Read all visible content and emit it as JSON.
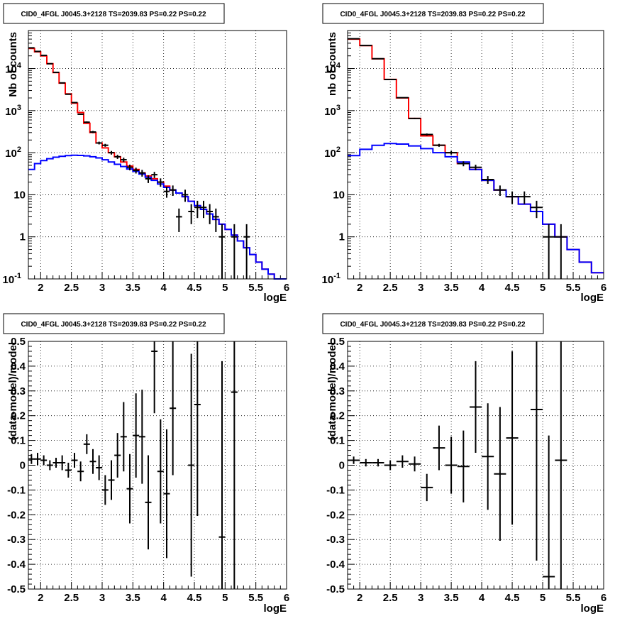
{
  "chart_data": [
    {
      "type": "line",
      "title": "CID0_4FGL J0045.3+2128 TS=2039.83 PS=0.22 PS=0.22",
      "xlabel": "logE",
      "ylabel": "Nb of counts",
      "log_y": true,
      "xlim": [
        1.8,
        6.0
      ],
      "ylim": [
        0.1,
        80000
      ],
      "grid": true,
      "x_ticks": [
        "2",
        "2.5",
        "3",
        "3.5",
        "4",
        "4.5",
        "5",
        "5.5",
        "6"
      ],
      "y_ticks": [
        "10^-1",
        "1",
        "10",
        "10^2",
        "10^3",
        "10^4"
      ],
      "bin_edges": [
        1.8,
        1.9,
        2.0,
        2.1,
        2.2,
        2.3,
        2.4,
        2.5,
        2.6,
        2.7,
        2.8,
        2.9,
        3.0,
        3.1,
        3.2,
        3.3,
        3.4,
        3.5,
        3.6,
        3.7,
        3.8,
        3.9,
        4.0,
        4.1,
        4.2,
        4.3,
        4.4,
        4.5,
        4.6,
        4.7,
        4.8,
        4.9,
        5.0,
        5.1,
        5.2,
        5.3,
        5.4,
        5.5,
        5.6,
        5.7,
        5.8,
        5.9,
        6.0
      ],
      "series": [
        {
          "color": "#ff0000",
          "kind": "histogram",
          "values": [
            30000,
            25000,
            20000,
            13000,
            8000,
            4500,
            2500,
            1500,
            900,
            500,
            300,
            170,
            130,
            100,
            80,
            60,
            48,
            40,
            33,
            28,
            24,
            20,
            16,
            13,
            11,
            9,
            7,
            5.5,
            4.5,
            3.5,
            2.6,
            2,
            1.5,
            1.1,
            0.8,
            0.55,
            0.38,
            0.25,
            0.17,
            0.13,
            0.1,
            0.1
          ]
        },
        {
          "color": "#0000ff",
          "kind": "histogram",
          "values": [
            40,
            55,
            65,
            72,
            78,
            82,
            85,
            87,
            86,
            84,
            80,
            75,
            68,
            60,
            53,
            47,
            41,
            36,
            31,
            26,
            22,
            18,
            15,
            13,
            11,
            9,
            7,
            5.5,
            4.5,
            3.5,
            2.6,
            2,
            1.5,
            1.1,
            0.8,
            0.55,
            0.38,
            0.25,
            0.17,
            0.13,
            0.1,
            0.1
          ]
        },
        {
          "color": "#000000",
          "kind": "points",
          "x": [
            1.85,
            1.95,
            2.05,
            2.15,
            2.25,
            2.35,
            2.45,
            2.55,
            2.65,
            2.75,
            2.85,
            2.95,
            3.05,
            3.15,
            3.25,
            3.35,
            3.45,
            3.55,
            3.65,
            3.75,
            3.85,
            3.95,
            4.05,
            4.15,
            4.25,
            4.35,
            4.45,
            4.55,
            4.65,
            4.75,
            4.85,
            4.95,
            5.15,
            5.35
          ],
          "y": [
            31000,
            25500,
            20500,
            13000,
            8100,
            4550,
            2450,
            1550,
            820,
            530,
            310,
            170,
            150,
            100,
            80,
            68,
            45,
            38,
            33,
            24,
            30,
            20,
            12,
            13,
            3,
            10,
            4,
            5,
            5,
            4,
            3,
            1,
            1,
            1
          ],
          "yerr": [
            176,
            160,
            143,
            114,
            90,
            67,
            50,
            39,
            29,
            23,
            18,
            13,
            12,
            10,
            9,
            8,
            7,
            6,
            6,
            5,
            5,
            4.5,
            3.5,
            3.6,
            1.7,
            3.2,
            2,
            2.2,
            2.2,
            2,
            1.7,
            1,
            1,
            1
          ]
        }
      ]
    },
    {
      "type": "line",
      "title": "CID0_4FGL J0045.3+2128 TS=2039.83 PS=0.22 PS=0.22",
      "xlabel": "logE",
      "ylabel": "nb of counts",
      "log_y": true,
      "xlim": [
        1.8,
        6.0
      ],
      "ylim": [
        0.1,
        80000
      ],
      "grid": true,
      "x_ticks": [
        "2",
        "2.5",
        "3",
        "3.5",
        "4",
        "4.5",
        "5",
        "5.5",
        "6"
      ],
      "y_ticks": [
        "10^-1",
        "1",
        "10",
        "10^2",
        "10^3",
        "10^4"
      ],
      "bin_edges": [
        1.8,
        2.0,
        2.2,
        2.4,
        2.6,
        2.8,
        3.0,
        3.2,
        3.4,
        3.6,
        3.8,
        4.0,
        4.2,
        4.4,
        4.6,
        4.8,
        5.0,
        5.2,
        5.4,
        5.6,
        5.8,
        6.0
      ],
      "series": [
        {
          "color": "#ff0000",
          "kind": "histogram",
          "values": [
            50000,
            35000,
            17000,
            5500,
            2000,
            650,
            250,
            150,
            100,
            55,
            40,
            22,
            13,
            9,
            6,
            4,
            2,
            1,
            0.5,
            0.25,
            0.14
          ]
        },
        {
          "color": "#0000ff",
          "kind": "histogram",
          "values": [
            85,
            120,
            150,
            165,
            160,
            145,
            125,
            100,
            80,
            60,
            40,
            22,
            13,
            9,
            6,
            4,
            2,
            1,
            0.5,
            0.25,
            0.14
          ]
        },
        {
          "color": "#000000",
          "kind": "points",
          "x": [
            1.9,
            2.1,
            2.3,
            2.5,
            2.7,
            2.9,
            3.1,
            3.3,
            3.5,
            3.7,
            3.9,
            4.1,
            4.3,
            4.5,
            4.7,
            4.9,
            5.1,
            5.3
          ],
          "y": [
            51000,
            35300,
            17100,
            5480,
            2030,
            650,
            270,
            150,
            100,
            55,
            45,
            23,
            13,
            9,
            9,
            5,
            1,
            1
          ],
          "yerr": [
            226,
            188,
            131,
            74,
            45,
            25,
            16,
            12,
            10,
            7.4,
            6.7,
            4.8,
            3.6,
            3,
            3,
            2.2,
            1,
            1
          ]
        }
      ]
    },
    {
      "type": "scatter",
      "title": "CID0_4FGL J0045.3+2128 TS=2039.83 PS=0.22 PS=0.22",
      "xlabel": "logE",
      "ylabel": "(data-model)/model",
      "xlim": [
        1.8,
        6.0
      ],
      "ylim": [
        -0.5,
        0.5
      ],
      "grid": true,
      "x_ticks": [
        "2",
        "2.5",
        "3",
        "3.5",
        "4",
        "4.5",
        "5",
        "5.5",
        "6"
      ],
      "y_ticks": [
        "-0.5",
        "-0.4",
        "-0.3",
        "-0.2",
        "-0.1",
        "0",
        "0.1",
        "0.2",
        "0.3",
        "0.4",
        "0.5"
      ],
      "series": [
        {
          "color": "#000000",
          "kind": "points",
          "x": [
            1.85,
            1.95,
            2.05,
            2.15,
            2.25,
            2.35,
            2.45,
            2.55,
            2.65,
            2.75,
            2.85,
            2.95,
            3.05,
            3.15,
            3.25,
            3.35,
            3.45,
            3.55,
            3.65,
            3.75,
            3.85,
            3.95,
            4.05,
            4.15,
            4.45,
            4.55,
            4.95,
            5.15
          ],
          "y": [
            0.025,
            0.025,
            0.02,
            0.0,
            0.01,
            0.01,
            -0.02,
            0.02,
            -0.025,
            0.085,
            0.015,
            -0.01,
            -0.1,
            -0.06,
            0.04,
            0.115,
            -0.095,
            0.12,
            0.115,
            -0.15,
            0.46,
            -0.025,
            -0.115,
            0.23,
            0.0,
            0.245,
            -0.29,
            0.295
          ],
          "yerr": [
            0.02,
            0.025,
            0.02,
            0.02,
            0.02,
            0.03,
            0.03,
            0.03,
            0.04,
            0.04,
            0.05,
            0.05,
            0.06,
            0.08,
            0.09,
            0.14,
            0.14,
            0.17,
            0.19,
            0.19,
            0.25,
            0.21,
            0.26,
            0.27,
            0.45,
            0.45,
            0.71,
            0.95
          ]
        }
      ]
    },
    {
      "type": "scatter",
      "title": "CID0_4FGL J0045.3+2128 TS=2039.83 PS=0.22 PS=0.22",
      "xlabel": "logE",
      "ylabel": "(data-model)/model",
      "xlim": [
        1.8,
        6.0
      ],
      "ylim": [
        -0.5,
        0.5
      ],
      "grid": true,
      "x_ticks": [
        "2",
        "2.5",
        "3",
        "3.5",
        "4",
        "4.5",
        "5",
        "5.5",
        "6"
      ],
      "y_ticks": [
        "-0.5",
        "-0.4",
        "-0.3",
        "-0.2",
        "-0.1",
        "0",
        "0.1",
        "0.2",
        "0.3",
        "0.4",
        "0.5"
      ],
      "series": [
        {
          "color": "#000000",
          "kind": "points",
          "x": [
            1.9,
            2.1,
            2.3,
            2.5,
            2.7,
            2.9,
            3.1,
            3.3,
            3.5,
            3.7,
            3.9,
            4.1,
            4.3,
            4.5,
            4.9,
            5.1,
            5.3
          ],
          "y": [
            0.02,
            0.01,
            0.01,
            0.0,
            0.015,
            0.005,
            -0.09,
            0.07,
            0.0,
            -0.005,
            0.235,
            0.035,
            -0.035,
            0.11,
            0.225,
            -0.45,
            0.02
          ],
          "yerr": [
            0.015,
            0.015,
            0.015,
            0.02,
            0.025,
            0.03,
            0.055,
            0.09,
            0.115,
            0.145,
            0.185,
            0.215,
            0.27,
            0.35,
            0.61,
            0.57,
            0.98
          ]
        }
      ]
    }
  ]
}
